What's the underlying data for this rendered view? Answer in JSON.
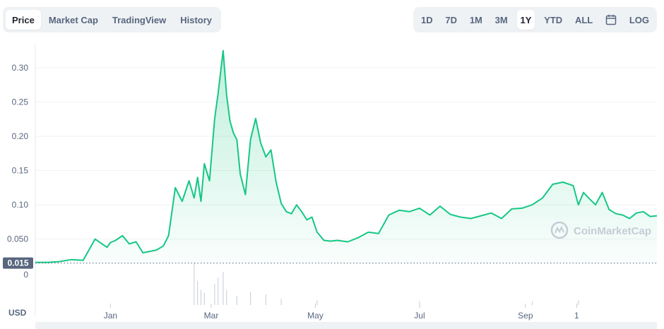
{
  "tabs": {
    "view": [
      "Price",
      "Market Cap",
      "TradingView",
      "History"
    ],
    "active_view": "Price",
    "ranges": [
      "1D",
      "7D",
      "1M",
      "3M",
      "1Y",
      "YTD",
      "ALL"
    ],
    "active_range": "1Y",
    "log_label": "LOG",
    "calendar_icon": "calendar-icon"
  },
  "watermark": "CoinMarketCap",
  "colors": {
    "line": "#16c784",
    "fill_top": "#16c784",
    "grid": "#eff2f5",
    "badge_bg": "#58667e"
  },
  "chart_data": {
    "type": "area",
    "currency_label": "USD",
    "y_ticks": [
      0.05,
      0.1,
      0.15,
      0.2,
      0.25,
      0.3
    ],
    "y_tick_labels": [
      "0.050",
      "0.10",
      "0.15",
      "0.20",
      "0.25",
      "0.30"
    ],
    "ylim": [
      0.0125,
      0.335
    ],
    "x_tick_labels": [
      "Jan",
      "Mar",
      "May",
      "Jul",
      "Sep",
      "1"
    ],
    "x_tick_dates": [
      "2022-01-01",
      "2022-03-01",
      "2022-05-01",
      "2022-07-01",
      "2022-09-01",
      "2022-10-01"
    ],
    "xlim": [
      "2021-11-18",
      "2022-11-17"
    ],
    "reference_line": 0.015,
    "reference_label": "0.015",
    "volume_axis_label": "0",
    "grid": true,
    "series": [
      {
        "x": [
          "2021-11-18",
          "2021-11-25",
          "2021-12-02",
          "2021-12-09",
          "2021-12-16",
          "2021-12-23",
          "2021-12-30",
          "2022-01-01",
          "2022-01-04",
          "2022-01-08",
          "2022-01-12",
          "2022-01-16",
          "2022-01-20",
          "2022-01-24",
          "2022-01-28",
          "2022-02-01",
          "2022-02-04",
          "2022-02-08",
          "2022-02-12",
          "2022-02-16",
          "2022-02-19",
          "2022-02-21",
          "2022-02-23",
          "2022-02-25",
          "2022-02-28",
          "2022-03-03",
          "2022-03-05",
          "2022-03-08",
          "2022-03-10",
          "2022-03-12",
          "2022-03-14",
          "2022-03-16",
          "2022-03-18",
          "2022-03-21",
          "2022-03-24",
          "2022-03-27",
          "2022-03-30",
          "2022-04-02",
          "2022-04-05",
          "2022-04-08",
          "2022-04-11",
          "2022-04-14",
          "2022-04-17",
          "2022-04-20",
          "2022-04-23",
          "2022-04-26",
          "2022-04-29",
          "2022-05-02",
          "2022-05-06",
          "2022-05-10",
          "2022-05-14",
          "2022-05-20",
          "2022-05-26",
          "2022-06-01",
          "2022-06-07",
          "2022-06-13",
          "2022-06-19",
          "2022-06-25",
          "2022-07-01",
          "2022-07-07",
          "2022-07-13",
          "2022-07-19",
          "2022-07-25",
          "2022-07-31",
          "2022-08-06",
          "2022-08-12",
          "2022-08-18",
          "2022-08-24",
          "2022-08-30",
          "2022-09-05",
          "2022-09-11",
          "2022-09-17",
          "2022-09-23",
          "2022-09-29",
          "2022-10-02",
          "2022-10-05",
          "2022-10-08",
          "2022-10-12",
          "2022-10-16",
          "2022-10-20",
          "2022-10-24",
          "2022-10-28",
          "2022-11-01",
          "2022-11-05",
          "2022-11-09",
          "2022-11-13",
          "2022-11-17"
        ],
        "values": [
          0.016,
          0.016,
          0.017,
          0.02,
          0.019,
          0.05,
          0.038,
          0.045,
          0.048,
          0.055,
          0.043,
          0.046,
          0.03,
          0.032,
          0.034,
          0.04,
          0.055,
          0.125,
          0.105,
          0.135,
          0.11,
          0.14,
          0.105,
          0.16,
          0.135,
          0.225,
          0.262,
          0.325,
          0.26,
          0.222,
          0.205,
          0.195,
          0.145,
          0.115,
          0.195,
          0.226,
          0.19,
          0.17,
          0.18,
          0.133,
          0.102,
          0.09,
          0.087,
          0.1,
          0.09,
          0.078,
          0.082,
          0.06,
          0.048,
          0.047,
          0.048,
          0.046,
          0.052,
          0.06,
          0.058,
          0.085,
          0.092,
          0.09,
          0.095,
          0.085,
          0.098,
          0.086,
          0.082,
          0.08,
          0.084,
          0.088,
          0.08,
          0.094,
          0.095,
          0.1,
          0.11,
          0.13,
          0.133,
          0.128,
          0.1,
          0.118,
          0.11,
          0.1,
          0.118,
          0.093,
          0.087,
          0.085,
          0.08,
          0.088,
          0.09,
          0.083,
          0.084
        ]
      }
    ],
    "volume": {
      "x": [
        "2022-02-19",
        "2022-02-21",
        "2022-02-23",
        "2022-02-25",
        "2022-03-03",
        "2022-03-05",
        "2022-03-08",
        "2022-03-10",
        "2022-03-16",
        "2022-03-24",
        "2022-04-02",
        "2022-04-11",
        "2022-05-02",
        "2022-07-01",
        "2022-09-05",
        "2022-10-02"
      ],
      "values": [
        70,
        40,
        25,
        20,
        35,
        45,
        55,
        25,
        15,
        22,
        18,
        10,
        8,
        6,
        6,
        8
      ]
    }
  }
}
